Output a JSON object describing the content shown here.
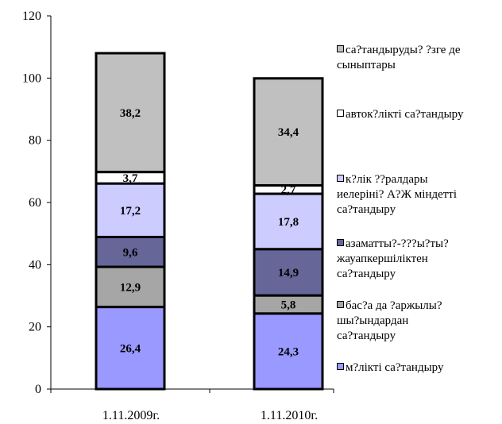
{
  "chart_data": {
    "type": "bar",
    "stacked": true,
    "categories": [
      "1.11.2009г.",
      "1.11.2010г."
    ],
    "ylim": [
      0,
      120
    ],
    "yticks": [
      0,
      20,
      40,
      60,
      80,
      100,
      120
    ],
    "legend_position": "right",
    "series": [
      {
        "name": "м?лікті са?тандыру",
        "values": [
          26.4,
          24.3
        ],
        "labels": [
          "26,4",
          "24,3"
        ],
        "color": "#9999ff"
      },
      {
        "name": "бас?а да ?аржылы? шы?ындардан са?тандыру",
        "values": [
          12.9,
          5.8
        ],
        "labels": [
          "12,9",
          "5,8"
        ],
        "color": "#a6a6a6"
      },
      {
        "name": "азаматты?-???ы?ты? жауапкершіліктен са?тандыру",
        "values": [
          9.6,
          14.9
        ],
        "labels": [
          "9,6",
          "14,9"
        ],
        "color": "#666699"
      },
      {
        "name": "к?лік ??ралдары иелеріні? А?Ж міндетті са?тандыру",
        "values": [
          17.2,
          17.8
        ],
        "labels": [
          "17,2",
          "17,8"
        ],
        "color": "#ccccff"
      },
      {
        "name": "авток?лікті са?тандыру",
        "values": [
          3.7,
          2.7
        ],
        "labels": [
          "3,7",
          "2,7"
        ],
        "color": "#ffffff"
      },
      {
        "name": "са?тандыруды? ?зге де сыныптары",
        "values": [
          38.2,
          34.4
        ],
        "labels": [
          "38,2",
          "34,4"
        ],
        "color": "#c0c0c0"
      }
    ]
  },
  "legend": [
    {
      "lines": [
        "са?тандыруды? ?зге де",
        "сыныптары"
      ],
      "color": "#c0c0c0"
    },
    {
      "lines": [
        "авток?лікті са?тандыру"
      ],
      "color": "#ffffff"
    },
    {
      "lines": [
        "к?лік ??ралдары",
        "иелеріні? А?Ж міндетті",
        "са?тандыру"
      ],
      "color": "#ccccff"
    },
    {
      "lines": [
        "азаматты?-???ы?ты?",
        "жауапкершіліктен",
        "са?тандыру"
      ],
      "color": "#666699"
    },
    {
      "lines": [
        "бас?а да ?аржылы?",
        "шы?ындардан",
        "са?тандыру"
      ],
      "color": "#a6a6a6"
    },
    {
      "lines": [
        "м?лікті са?тандыру"
      ],
      "color": "#9999ff"
    }
  ]
}
